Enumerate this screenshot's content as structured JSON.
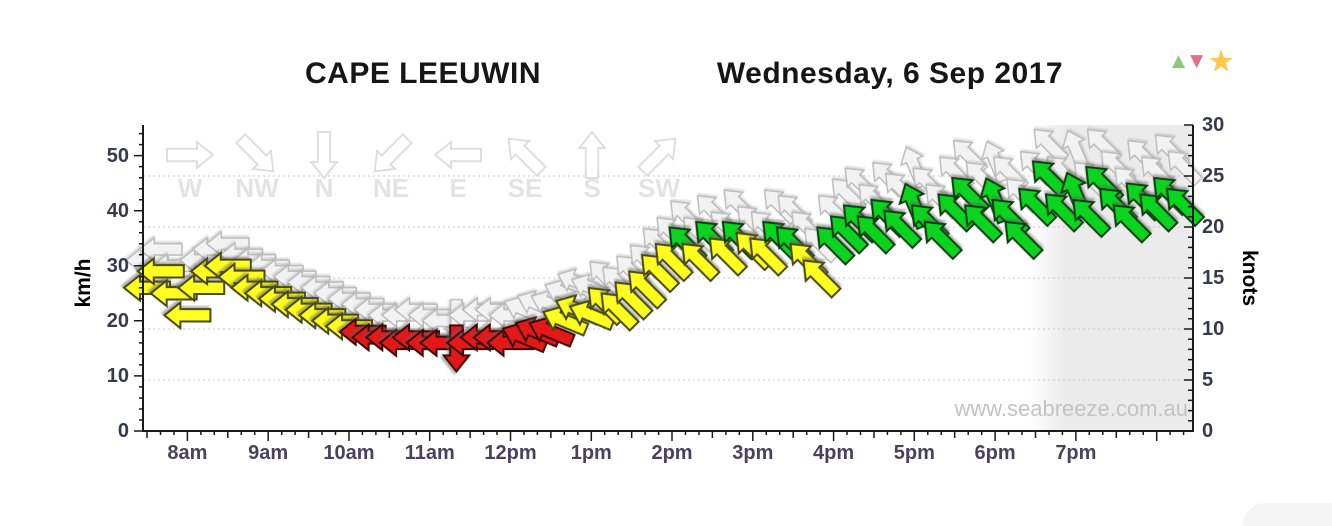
{
  "toolbar": {
    "up_glyph": "▲",
    "up_color": "#8dc87f",
    "down_glyph": "▼",
    "down_color": "#e0718b",
    "star_glyph": "★",
    "star_color": "#fbc94f"
  },
  "watermark": {
    "text": "www.seabreeze.com.au",
    "color": "#c3c3c3"
  },
  "chart_data": {
    "type": "wind-arrow-timeseries",
    "title": "CAPE LEEUWIN",
    "date": "Wednesday, 6 Sep 2017",
    "left_axis": {
      "label": "km/h",
      "ticks": [
        0,
        10,
        20,
        30,
        40,
        50
      ],
      "max_kmh": 55.56
    },
    "right_axis": {
      "label": "knots",
      "ticks": [
        0,
        5,
        10,
        15,
        20,
        25,
        30
      ],
      "max_knots": 30
    },
    "x_axis": {
      "labels": [
        "8am",
        "9am",
        "10am",
        "11am",
        "12pm",
        "1pm",
        "2pm",
        "3pm",
        "4pm",
        "5pm",
        "6pm",
        "7pm"
      ],
      "hours": [
        8,
        9,
        10,
        11,
        12,
        13,
        14,
        15,
        16,
        17,
        18,
        19
      ],
      "range_hours": [
        7.45,
        20.45
      ]
    },
    "grid": "dotted horizontal line every 5 knots",
    "direction_legend": {
      "labels": [
        "W",
        "NW",
        "N",
        "NE",
        "E",
        "SE",
        "S",
        "SW"
      ]
    },
    "speed_colors": {
      "light": "#e51818",
      "moderate": "#fdfd1f",
      "fresh": "#0ad41e",
      "gust": "#f2f2f2"
    },
    "color_thresholds_kmh": {
      "red_below": 18.5,
      "green_from": 33.4
    },
    "evening_shade_hours": [
      18.42,
      20.45
    ],
    "wind_avg": [
      [
        7.5,
        26,
        "E"
      ],
      [
        7.67,
        29,
        "E"
      ],
      [
        7.83,
        25,
        "E"
      ],
      [
        8,
        21,
        "E"
      ],
      [
        8.17,
        26,
        "E"
      ],
      [
        8.33,
        29,
        "E"
      ],
      [
        8.5,
        30,
        "E"
      ],
      [
        8.67,
        28,
        "E"
      ],
      [
        8.83,
        26,
        "E"
      ],
      [
        9,
        25,
        "E"
      ],
      [
        9.17,
        24,
        "E"
      ],
      [
        9.33,
        23,
        "E"
      ],
      [
        9.5,
        22,
        "E"
      ],
      [
        9.67,
        21,
        "E"
      ],
      [
        9.83,
        20,
        "E"
      ],
      [
        10,
        19,
        "E"
      ],
      [
        10.17,
        18,
        "E"
      ],
      [
        10.33,
        17,
        "E"
      ],
      [
        10.5,
        17,
        "E"
      ],
      [
        10.67,
        16,
        "E"
      ],
      [
        10.83,
        17,
        "E"
      ],
      [
        11,
        16,
        "E"
      ],
      [
        11.17,
        16,
        "E"
      ],
      [
        11.33,
        15,
        "N"
      ],
      [
        11.5,
        16,
        "E"
      ],
      [
        11.67,
        17,
        "E"
      ],
      [
        11.83,
        17,
        "E"
      ],
      [
        12,
        16,
        "E"
      ],
      [
        12.17,
        17,
        "ESE"
      ],
      [
        12.33,
        18,
        "ESE"
      ],
      [
        12.5,
        18,
        "ESE"
      ],
      [
        12.67,
        20,
        "ESE"
      ],
      [
        12.83,
        22,
        "ESE"
      ],
      [
        13,
        21,
        "ESE"
      ],
      [
        13.17,
        23,
        "SE"
      ],
      [
        13.33,
        22,
        "SE"
      ],
      [
        13.5,
        24,
        "SE"
      ],
      [
        13.67,
        26,
        "SE"
      ],
      [
        13.83,
        29,
        "SE"
      ],
      [
        14,
        31,
        "SE"
      ],
      [
        14.17,
        34,
        "SE"
      ],
      [
        14.33,
        31,
        "SE"
      ],
      [
        14.5,
        35,
        "SE"
      ],
      [
        14.67,
        32,
        "SE"
      ],
      [
        14.83,
        35,
        "SE"
      ],
      [
        15,
        33,
        "SE"
      ],
      [
        15.17,
        32,
        "SE"
      ],
      [
        15.33,
        35,
        "SE"
      ],
      [
        15.5,
        34,
        "SE"
      ],
      [
        15.67,
        31,
        "SE"
      ],
      [
        15.83,
        28,
        "SE"
      ],
      [
        16,
        34,
        "SE"
      ],
      [
        16.17,
        36,
        "SE"
      ],
      [
        16.33,
        38,
        "SE"
      ],
      [
        16.5,
        36,
        "SE"
      ],
      [
        16.67,
        39,
        "SE"
      ],
      [
        16.83,
        37,
        "SE"
      ],
      [
        17,
        41,
        "SSE"
      ],
      [
        17.17,
        38,
        "SE"
      ],
      [
        17.33,
        35,
        "SE"
      ],
      [
        17.5,
        40,
        "SE"
      ],
      [
        17.67,
        43,
        "SE"
      ],
      [
        17.83,
        38,
        "SE"
      ],
      [
        18,
        42,
        "SSE"
      ],
      [
        18.17,
        39,
        "SE"
      ],
      [
        18.33,
        35,
        "SE"
      ],
      [
        18.5,
        41,
        "SE"
      ],
      [
        18.67,
        46,
        "SE"
      ],
      [
        18.83,
        40,
        "SE"
      ],
      [
        19,
        43,
        "SSE"
      ],
      [
        19.17,
        39,
        "SE"
      ],
      [
        19.33,
        45,
        "SE"
      ],
      [
        19.5,
        41,
        "SE"
      ],
      [
        19.67,
        38,
        "SE"
      ],
      [
        19.83,
        42,
        "SE"
      ],
      [
        20,
        40,
        "SE"
      ],
      [
        20.17,
        43,
        "SE"
      ],
      [
        20.33,
        41,
        "SE"
      ]
    ],
    "wind_gusts": [
      [
        7.5,
        31,
        "E"
      ],
      [
        7.67,
        33,
        "E"
      ],
      [
        7.83,
        30,
        "E"
      ],
      [
        8,
        27,
        "E"
      ],
      [
        8.17,
        31,
        "E"
      ],
      [
        8.33,
        33,
        "E"
      ],
      [
        8.5,
        34,
        "E"
      ],
      [
        8.67,
        32,
        "E"
      ],
      [
        8.83,
        31,
        "E"
      ],
      [
        9,
        30,
        "E"
      ],
      [
        9.17,
        29,
        "E"
      ],
      [
        9.33,
        28,
        "E"
      ],
      [
        9.5,
        27,
        "E"
      ],
      [
        9.67,
        26,
        "E"
      ],
      [
        9.83,
        25,
        "E"
      ],
      [
        10,
        24,
        "E"
      ],
      [
        10.17,
        23,
        "E"
      ],
      [
        10.33,
        22,
        "E"
      ],
      [
        10.5,
        21,
        "E"
      ],
      [
        10.67,
        21,
        "E"
      ],
      [
        10.83,
        22,
        "E"
      ],
      [
        11,
        21,
        "E"
      ],
      [
        11.17,
        20,
        "E"
      ],
      [
        11.33,
        20,
        "N"
      ],
      [
        11.5,
        21,
        "E"
      ],
      [
        11.67,
        22,
        "E"
      ],
      [
        11.83,
        22,
        "E"
      ],
      [
        12,
        21,
        "E"
      ],
      [
        12.17,
        22,
        "ESE"
      ],
      [
        12.33,
        23,
        "ESE"
      ],
      [
        12.5,
        23,
        "ESE"
      ],
      [
        12.67,
        25,
        "ESE"
      ],
      [
        12.83,
        27,
        "ESE"
      ],
      [
        13,
        26,
        "ESE"
      ],
      [
        13.17,
        28,
        "SE"
      ],
      [
        13.33,
        27,
        "SE"
      ],
      [
        13.5,
        29,
        "SE"
      ],
      [
        13.67,
        31,
        "SE"
      ],
      [
        13.83,
        34,
        "SE"
      ],
      [
        14,
        36,
        "SE"
      ],
      [
        14.17,
        39,
        "SE"
      ],
      [
        14.33,
        36,
        "SE"
      ],
      [
        14.5,
        40,
        "SE"
      ],
      [
        14.67,
        37,
        "SE"
      ],
      [
        14.83,
        41,
        "SE"
      ],
      [
        15,
        38,
        "SE"
      ],
      [
        15.17,
        37,
        "SE"
      ],
      [
        15.33,
        41,
        "SE"
      ],
      [
        15.5,
        40,
        "SE"
      ],
      [
        15.67,
        37,
        "SE"
      ],
      [
        15.83,
        34,
        "SE"
      ],
      [
        16,
        40,
        "SE"
      ],
      [
        16.17,
        43,
        "SE"
      ],
      [
        16.33,
        45,
        "SE"
      ],
      [
        16.5,
        42,
        "SE"
      ],
      [
        16.67,
        46,
        "SE"
      ],
      [
        16.83,
        44,
        "SE"
      ],
      [
        17,
        48,
        "SSE"
      ],
      [
        17.17,
        45,
        "SE"
      ],
      [
        17.33,
        42,
        "SE"
      ],
      [
        17.5,
        47,
        "SE"
      ],
      [
        17.67,
        50,
        "SE"
      ],
      [
        17.83,
        46,
        "SE"
      ],
      [
        18,
        49,
        "SSE"
      ],
      [
        18.17,
        47,
        "SE"
      ],
      [
        18.33,
        43,
        "SE"
      ],
      [
        18.5,
        48,
        "SE"
      ],
      [
        18.67,
        52,
        "SE"
      ],
      [
        18.83,
        47,
        "SE"
      ],
      [
        19,
        51,
        "SSE"
      ],
      [
        19.17,
        46,
        "SE"
      ],
      [
        19.33,
        52,
        "SE"
      ],
      [
        19.5,
        48,
        "SE"
      ],
      [
        19.67,
        45,
        "SE"
      ],
      [
        19.83,
        50,
        "SE"
      ],
      [
        20,
        47,
        "SE"
      ],
      [
        20.17,
        51,
        "SE"
      ],
      [
        20.33,
        48,
        "SE"
      ]
    ]
  }
}
